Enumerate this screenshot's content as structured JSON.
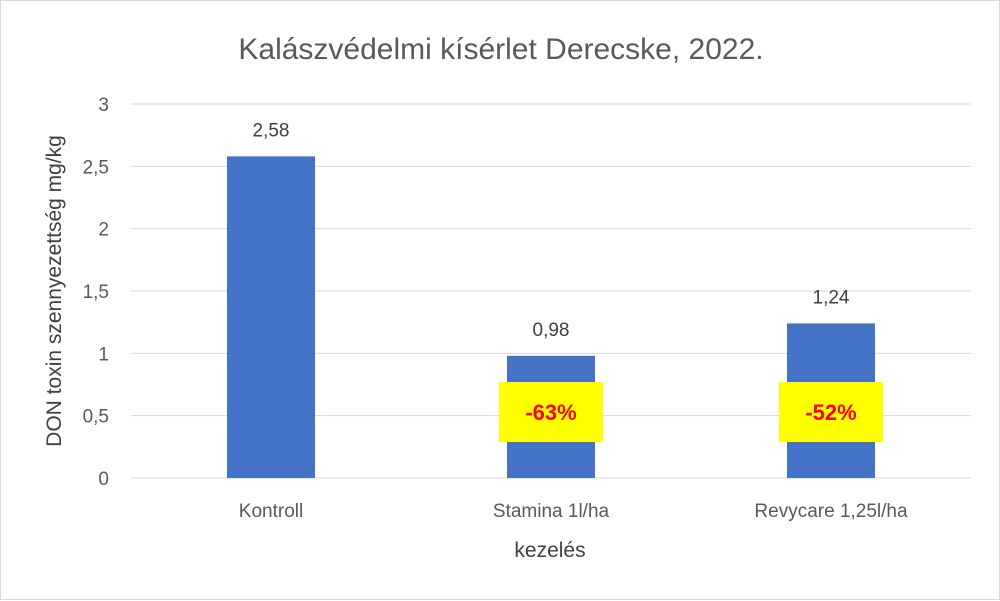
{
  "chart_data": {
    "type": "bar",
    "title": "Kalászvédelmi kísérlet Derecske, 2022.",
    "xlabel": "kezelés",
    "ylabel": "DON toxin szennyezettség mg/kg",
    "categories": [
      "Kontroll",
      "Stamina 1l/ha",
      "Revycare 1,25l/ha"
    ],
    "values": [
      2.58,
      0.98,
      1.24
    ],
    "data_labels": [
      "2,58",
      "0,98",
      "1,24"
    ],
    "annotations": [
      "",
      "-63%",
      "-52%"
    ],
    "ylim": [
      0,
      3
    ],
    "yticks": [
      0,
      0.5,
      1,
      1.5,
      2,
      2.5,
      3
    ],
    "ytick_labels": [
      "0",
      "0,5",
      "1",
      "1,5",
      "2",
      "2,5",
      "3"
    ],
    "grid": true,
    "colors": {
      "bar": "#4472c4",
      "annotation_box": "#ffff00",
      "annotation_text": "#ff0000",
      "grid": "#d9d9d9"
    }
  }
}
